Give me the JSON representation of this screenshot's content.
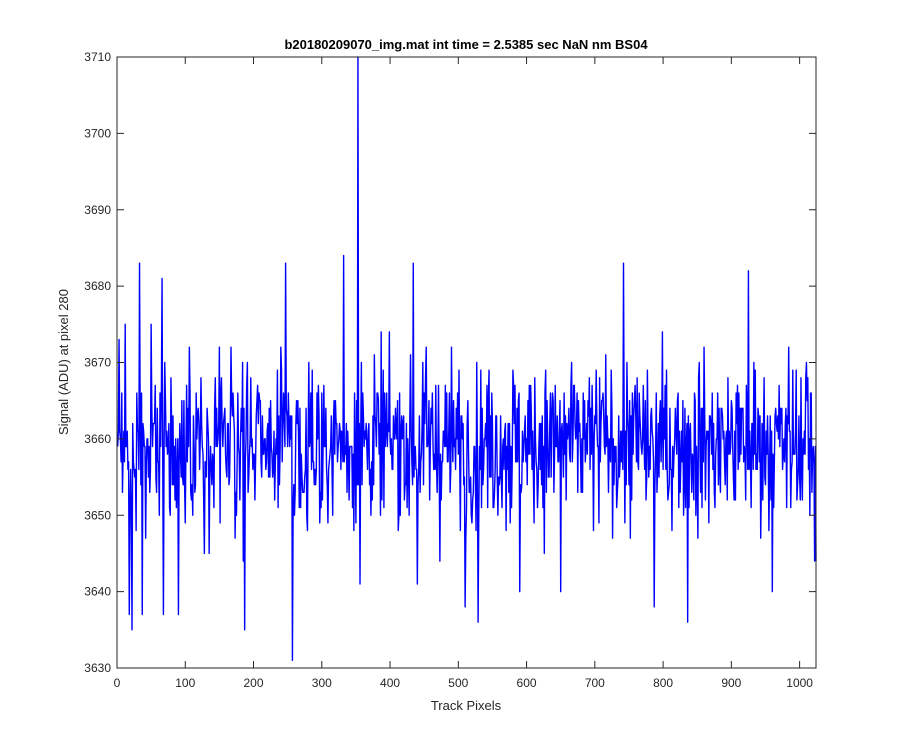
{
  "chart_data": {
    "type": "line",
    "title": "b20180209070_img.mat int time = 2.5385 sec  NaN nm BS04",
    "xlabel": "Track Pixels",
    "ylabel": "Signal (ADU) at pixel 280",
    "xlim": [
      0,
      1024
    ],
    "ylim": [
      3630,
      3710
    ],
    "xticks": [
      0,
      100,
      200,
      300,
      400,
      500,
      600,
      700,
      800,
      900,
      1000
    ],
    "yticks": [
      3630,
      3640,
      3650,
      3660,
      3670,
      3680,
      3690,
      3700,
      3710
    ],
    "grid": false,
    "series_color": "#0000ff",
    "series": [
      {
        "noise": {
          "n_points": 1024,
          "mean": 3659.5,
          "spread": 6,
          "min": 3635,
          "max": 3684
        },
        "notable_points": [
          {
            "x": 1,
            "y": 3659
          },
          {
            "x": 3,
            "y": 3673
          },
          {
            "x": 8,
            "y": 3653
          },
          {
            "x": 12,
            "y": 3675
          },
          {
            "x": 18,
            "y": 3637
          },
          {
            "x": 22,
            "y": 3635
          },
          {
            "x": 33,
            "y": 3683
          },
          {
            "x": 37,
            "y": 3637
          },
          {
            "x": 50,
            "y": 3675
          },
          {
            "x": 66,
            "y": 3681
          },
          {
            "x": 68,
            "y": 3637
          },
          {
            "x": 90,
            "y": 3637
          },
          {
            "x": 187,
            "y": 3635
          },
          {
            "x": 247,
            "y": 3683
          },
          {
            "x": 257,
            "y": 3631
          },
          {
            "x": 332,
            "y": 3684
          },
          {
            "x": 353,
            "y": 3710
          },
          {
            "x": 356,
            "y": 3641
          },
          {
            "x": 434,
            "y": 3683
          },
          {
            "x": 440,
            "y": 3641
          },
          {
            "x": 510,
            "y": 3638
          },
          {
            "x": 529,
            "y": 3636
          },
          {
            "x": 590,
            "y": 3640
          },
          {
            "x": 650,
            "y": 3640
          },
          {
            "x": 742,
            "y": 3683
          },
          {
            "x": 787,
            "y": 3638
          },
          {
            "x": 836,
            "y": 3636
          },
          {
            "x": 925,
            "y": 3682
          },
          {
            "x": 960,
            "y": 3640
          },
          {
            "x": 1010,
            "y": 3670
          },
          {
            "x": 1015,
            "y": 3650
          },
          {
            "x": 1022,
            "y": 3644
          }
        ]
      }
    ]
  }
}
